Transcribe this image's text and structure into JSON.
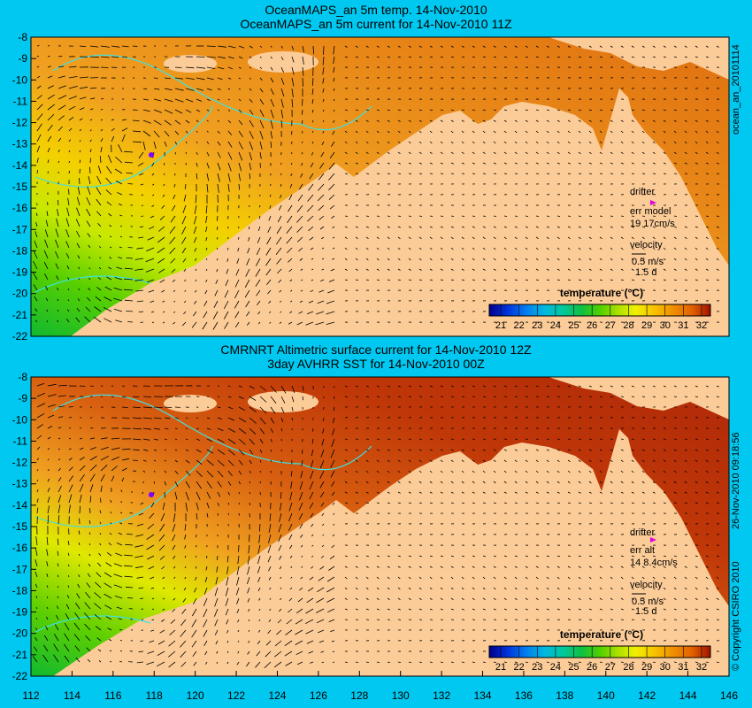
{
  "top": {
    "title_line1": "OceanMAPS_an 5m temp. 14-Nov-2010",
    "title_line2": "OceanMAPS_an 5m current for 14-Nov-2010 11Z",
    "side_label": "ocean_an_20101114",
    "legend": {
      "drifter": "drifter",
      "err_line1": "err model",
      "err_line2": "19 17cm/s",
      "velocity": "velocity",
      "scale_line1": "0.5 m/s",
      "scale_line2": "1.5 d"
    },
    "colorbar_title": "temperature (°C)"
  },
  "bottom": {
    "title_line1": "CMRNRT Altimetric surface current for 14-Nov-2010 12Z",
    "title_line2": "3day AVHRR SST for 14-Nov-2010 00Z",
    "side_label": "26-Nov-2010 09:18:56",
    "copyright": "© Copyright CSIRO 2010",
    "legend": {
      "drifter": "drifter",
      "err_line1": "err alt",
      "err_line2": "14 8.4cm/s",
      "velocity": "velocity",
      "scale_line1": "0.5 m/s",
      "scale_line2": "1.5 d"
    },
    "colorbar_title": "temperature (°C)"
  },
  "colorbar_ticks": [
    "21",
    "22",
    "23",
    "24",
    "25",
    "26",
    "27",
    "28",
    "29",
    "30",
    "31",
    "32"
  ],
  "colorbar_colors": [
    "#00008c",
    "#0030d8",
    "#0078f0",
    "#00b8e0",
    "#00c8a0",
    "#10c040",
    "#50d000",
    "#a8e000",
    "#f0f000",
    "#f8c000",
    "#f09000",
    "#e06000",
    "#c03000",
    "#a01000"
  ],
  "y_ticks": [
    "-8",
    "-9",
    "-10",
    "-11",
    "-12",
    "-13",
    "-14",
    "-15",
    "-16",
    "-17",
    "-18",
    "-19",
    "-20",
    "-21",
    "-22"
  ],
  "x_ticks": [
    "112",
    "114",
    "116",
    "118",
    "120",
    "122",
    "124",
    "126",
    "128",
    "130",
    "132",
    "134",
    "136",
    "138",
    "140",
    "142",
    "144",
    "146"
  ],
  "colors": {
    "background": "#00c8f0",
    "land": "#fccc98",
    "frame": "#000000"
  }
}
